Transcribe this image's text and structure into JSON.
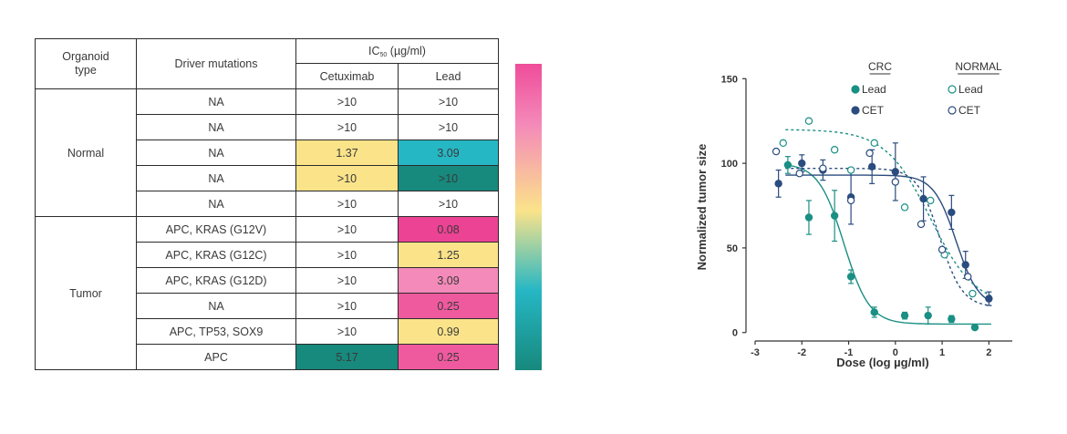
{
  "table": {
    "headers": {
      "organoid_type": "Organoid type",
      "driver_mutations": "Driver mutations",
      "ic50_prefix": "IC",
      "ic50_sub": "50",
      "ic50_suffix": " (µg/ml)",
      "cetuximab": "Cetuximab",
      "lead": "Lead"
    },
    "groups": [
      {
        "name": "Normal",
        "rows": [
          {
            "mutation": "NA",
            "cetuximab": ">10",
            "lead": ">10",
            "cet_color": "#ffffff",
            "lead_color": "#ffffff"
          },
          {
            "mutation": "NA",
            "cetuximab": ">10",
            "lead": ">10",
            "cet_color": "#ffffff",
            "lead_color": "#ffffff"
          },
          {
            "mutation": "NA",
            "cetuximab": "1.37",
            "lead": "3.09",
            "cet_color": "#fbe38a",
            "lead_color": "#26b7c4"
          },
          {
            "mutation": "NA",
            "cetuximab": ">10",
            "lead": ">10",
            "cet_color": "#fbe38a",
            "lead_color": "#17897d"
          },
          {
            "mutation": "NA",
            "cetuximab": ">10",
            "lead": ">10",
            "cet_color": "#ffffff",
            "lead_color": "#ffffff"
          }
        ]
      },
      {
        "name": "Tumor",
        "rows": [
          {
            "mutation": "APC, KRAS (G12V)",
            "cetuximab": ">10",
            "lead": "0.08",
            "cet_color": "#ffffff",
            "lead_color": "#ec4394"
          },
          {
            "mutation": "APC, KRAS (G12C)",
            "cetuximab": ">10",
            "lead": "1.25",
            "cet_color": "#ffffff",
            "lead_color": "#fbe38a"
          },
          {
            "mutation": "APC, KRAS (G12D)",
            "cetuximab": ">10",
            "lead": "3.09",
            "cet_color": "#ffffff",
            "lead_color": "#f48ab9"
          },
          {
            "mutation": "NA",
            "cetuximab": ">10",
            "lead": "0.25",
            "cet_color": "#ffffff",
            "lead_color": "#ef5a9f"
          },
          {
            "mutation": "APC, TP53, SOX9",
            "cetuximab": ">10",
            "lead": "0.99",
            "cet_color": "#ffffff",
            "lead_color": "#fbe38a"
          },
          {
            "mutation": "APC",
            "cetuximab": "5.17",
            "lead": "0.25",
            "cet_color": "#17897d",
            "lead_color": "#ef5a9f"
          }
        ]
      }
    ]
  },
  "colorbar": {
    "stops": [
      "#ef4d9a",
      "#f48ab9",
      "#fbe38a",
      "#26b7c4",
      "#17897d"
    ]
  },
  "chart_data": {
    "type": "scatter",
    "xlabel": "Dose (log µg/ml)",
    "ylabel": "Normalized tumor size",
    "xlim": [
      -3,
      2.5
    ],
    "ylim": [
      -5,
      155
    ],
    "xticks": [
      -3,
      -2,
      -1,
      0,
      1,
      2
    ],
    "yticks": [
      0,
      50,
      100,
      150
    ],
    "legend_headers": [
      "CRC",
      "NORMAL"
    ],
    "series": [
      {
        "name": "Lead",
        "group": "CRC",
        "color": "#1a8f84",
        "filled": true,
        "x": [
          -2.3,
          -1.85,
          -1.3,
          -0.95,
          -0.45,
          0.2,
          0.7,
          1.2,
          1.7
        ],
        "y": [
          99,
          68,
          69,
          33,
          12,
          10,
          10,
          8,
          3
        ],
        "err": [
          5,
          10,
          15,
          4,
          3,
          2,
          5,
          2,
          1
        ]
      },
      {
        "name": "CET",
        "group": "CRC",
        "color": "#2b4c7e",
        "filled": true,
        "x": [
          -2.5,
          -2.0,
          -1.55,
          -0.95,
          -0.5,
          0.0,
          0.6,
          1.2,
          1.5,
          2.0
        ],
        "y": [
          88,
          100,
          96,
          80,
          98,
          95,
          79,
          71,
          40,
          20
        ],
        "err": [
          8,
          5,
          6,
          16,
          10,
          17,
          13,
          10,
          8,
          4
        ]
      },
      {
        "name": "Lead",
        "group": "NORMAL",
        "color": "#1a8f84",
        "filled": false,
        "x": [
          -2.4,
          -1.85,
          -1.3,
          -0.95,
          -0.45,
          0.2,
          0.75,
          1.05,
          1.65
        ],
        "y": [
          112,
          125,
          108,
          96,
          112,
          74,
          78,
          46,
          23
        ],
        "err": [
          0,
          0,
          0,
          0,
          0,
          0,
          0,
          0,
          0
        ]
      },
      {
        "name": "CET",
        "group": "NORMAL",
        "color": "#2b4c7e",
        "filled": false,
        "x": [
          -2.55,
          -2.05,
          -1.55,
          -0.95,
          -0.55,
          0.0,
          0.55,
          1.0,
          1.55
        ],
        "y": [
          107,
          94,
          97,
          78,
          106,
          89,
          64,
          49,
          33
        ],
        "err": [
          0,
          0,
          0,
          0,
          0,
          0,
          0,
          0,
          0
        ]
      }
    ],
    "fits": [
      {
        "series": "CRC Lead",
        "style": "solid",
        "color": "#1a8f84",
        "top": 100,
        "bottom": 5,
        "logIC50": -1.1,
        "hill": 1.6
      },
      {
        "series": "CRC CET",
        "style": "solid",
        "color": "#2b4c7e",
        "top": 93,
        "bottom": 15,
        "logIC50": 1.3,
        "hill": 1.8
      },
      {
        "series": "NORMAL Lead",
        "style": "dashed",
        "color": "#1a8f84",
        "top": 120,
        "bottom": 15,
        "logIC50": 0.75,
        "hill": 0.9
      },
      {
        "series": "NORMAL CET",
        "style": "dashed",
        "color": "#2b4c7e",
        "top": 97,
        "bottom": 15,
        "logIC50": 0.95,
        "hill": 1.8
      }
    ]
  }
}
